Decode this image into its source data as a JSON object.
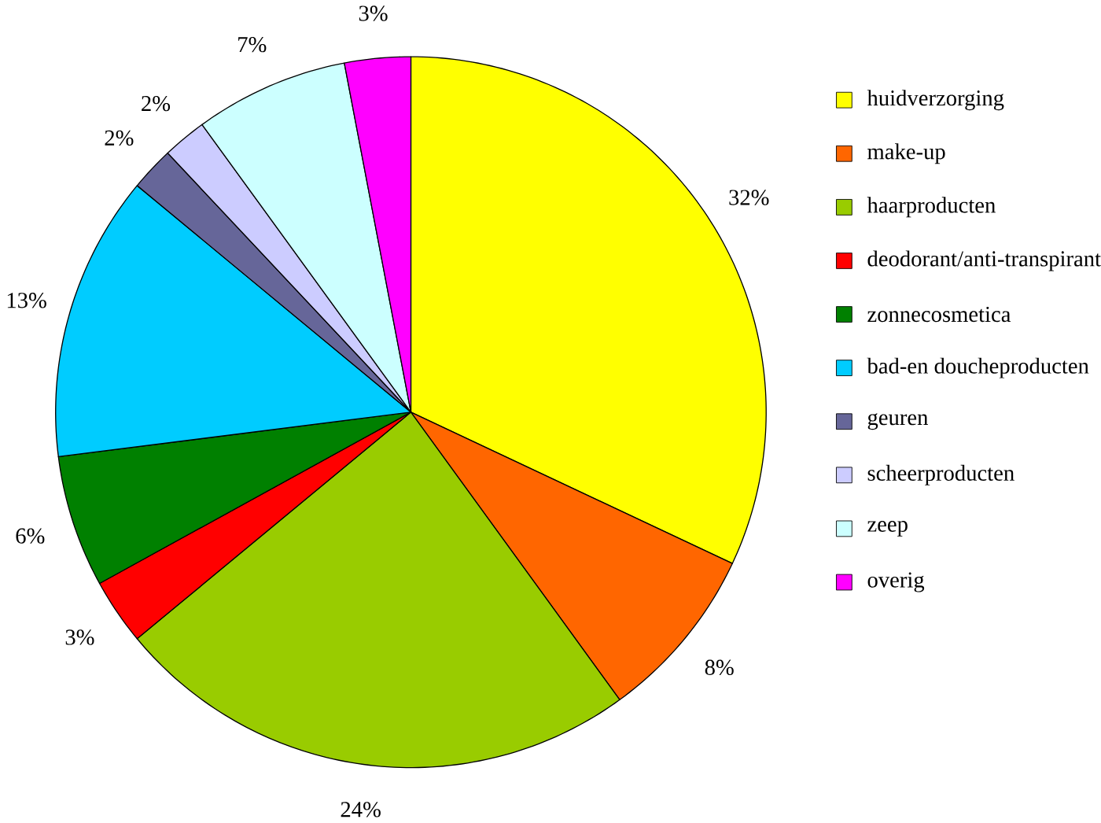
{
  "chart_data": {
    "type": "pie",
    "categories": [
      "huidverzorging",
      "make-up",
      "haarproducten",
      "deodorant/anti-transpirant",
      "zonnecosmetica",
      "bad-en doucheproducten",
      "geuren",
      "scheerproducten",
      "zeep",
      "overig"
    ],
    "values": [
      32,
      8,
      24,
      3,
      6,
      13,
      2,
      2,
      7,
      3
    ],
    "value_labels": [
      "32%",
      "8%",
      "24%",
      "3%",
      "6%",
      "13%",
      "2%",
      "2%",
      "7%",
      "3%"
    ],
    "colors": [
      "#ffff00",
      "#ff6600",
      "#99cc00",
      "#ff0000",
      "#008000",
      "#00ccff",
      "#666699",
      "#ccccff",
      "#ccffff",
      "#ff00ff"
    ],
    "legend": "right"
  }
}
